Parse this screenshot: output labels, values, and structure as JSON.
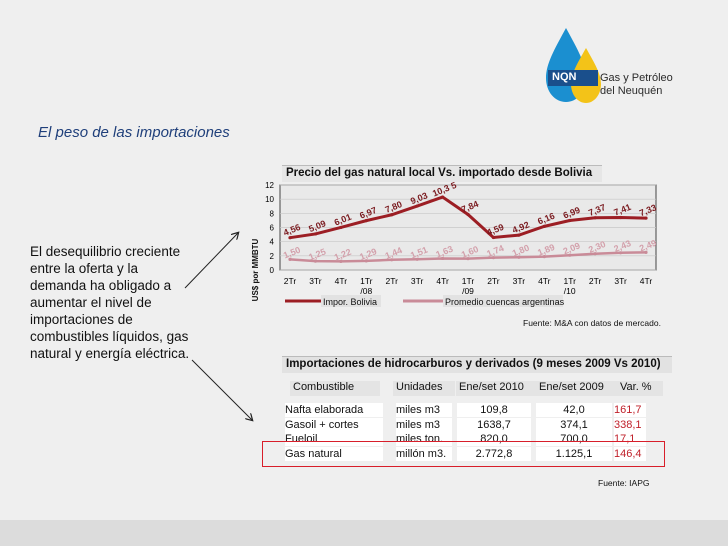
{
  "logo": {
    "badge": "NQN",
    "line1": "Gas y Petróleo",
    "line2": "del Neuquén"
  },
  "slide_title": "El peso de las importaciones",
  "body_text": "El desequilibrio creciente entre la oferta y la demanda ha obligado a aumentar el nivel de importaciones de combustibles líquidos, gas natural y energía eléctrica.",
  "colors": {
    "bolivia": "#9c1e24",
    "cuencas": "#c98b98",
    "accent_red": "#d81e2a"
  },
  "chart_data": {
    "type": "line",
    "title": "Precio del gas natural local Vs. importado desde Bolivia",
    "ylabel": "US$ por MMBTU",
    "ylim": [
      0,
      12
    ],
    "yticks": [
      "0",
      "2",
      "4",
      "6",
      "8",
      "10",
      "12"
    ],
    "categories": [
      "2Tr",
      "3Tr",
      "4Tr",
      "1Tr /08",
      "2Tr",
      "3Tr",
      "4Tr",
      "1Tr /09",
      "2Tr",
      "3Tr",
      "4Tr",
      "1Tr /10",
      "2Tr",
      "3Tr",
      "4Tr"
    ],
    "category_lines": [
      [
        "2Tr"
      ],
      [
        "3Tr"
      ],
      [
        "4Tr"
      ],
      [
        "1Tr",
        "/08"
      ],
      [
        "2Tr"
      ],
      [
        "3Tr"
      ],
      [
        "4Tr"
      ],
      [
        "1Tr",
        "/09"
      ],
      [
        "2Tr"
      ],
      [
        "3Tr"
      ],
      [
        "4Tr"
      ],
      [
        "1Tr",
        "/10"
      ],
      [
        "2Tr"
      ],
      [
        "3Tr"
      ],
      [
        "4Tr"
      ]
    ],
    "series": [
      {
        "name": "Impor. Bolivia",
        "values": [
          4.56,
          5.09,
          6.01,
          6.97,
          7.8,
          9.03,
          10.3,
          7.84,
          4.59,
          4.92,
          6.16,
          6.99,
          7.37,
          7.41,
          7.33
        ],
        "labels": [
          "4,56",
          "5,09",
          "6,01",
          "6,97",
          "7,80",
          "9,03",
          "10,3 5",
          "7,84",
          "4,59",
          "4,92",
          "6,16",
          "6,99",
          "7,37",
          "7,41",
          "7,33"
        ]
      },
      {
        "name": "Promedio cuencas argentinas",
        "values": [
          1.5,
          1.25,
          1.22,
          1.29,
          1.44,
          1.51,
          1.63,
          1.6,
          1.74,
          1.8,
          1.89,
          2.09,
          2.3,
          2.43,
          2.49
        ],
        "labels": [
          "1,50",
          "1,25",
          "1,22",
          "1,29",
          "1,44",
          "1,51",
          "1,63",
          "1,60",
          "1,74",
          "1,80",
          "1,89",
          "2,09",
          "2,30",
          "2,43",
          "2,49"
        ]
      }
    ],
    "source": "Fuente: M&A con datos de mercado."
  },
  "table": {
    "title": "Importaciones de hidrocarburos y derivados (9 meses 2009 Vs 2010)",
    "headers": [
      "Combustible",
      "Unidades",
      "Ene/set 2010",
      "Ene/set 2009",
      "Var. %"
    ],
    "rows": [
      [
        "Nafta elaborada",
        "miles m3",
        "109,8",
        "42,0",
        "161,7"
      ],
      [
        "Gasoil + cortes",
        "miles m3",
        "1638,7",
        "374,1",
        "338,1"
      ],
      [
        "Fueloil",
        "miles ton.",
        "820,0",
        "700,0",
        "17,1"
      ],
      [
        "Gas natural",
        "millón m3.",
        "2.772,8",
        "1.125,1",
        "146,4"
      ]
    ],
    "source": "Fuente: IAPG"
  }
}
